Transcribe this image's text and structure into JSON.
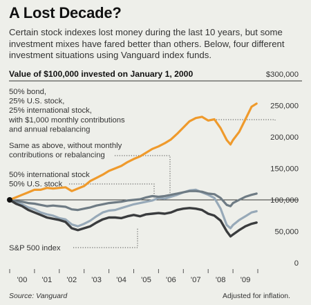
{
  "header": {
    "title": "A Lost Decade?",
    "intro": "Certain stock indexes lost money during the last 10 years, but some investment mixes have fared better than others. Below, four different investment situations using Vanguard index funds.",
    "subtitle": "Value of $100,000 invested on January 1, 2000"
  },
  "footer": {
    "source": "Source: Vanguard",
    "credit": "Adjusted for inflation."
  },
  "colors": {
    "background": "#eeefea",
    "contributions": "#ef9a2c",
    "no_contributions": "#6e7b84",
    "intl_us": "#97a9b8",
    "sp500": "#3a3c3e"
  },
  "chart_data": {
    "type": "line",
    "x_tick_labels": [
      "'00",
      "'01",
      "'02",
      "'03",
      "'04",
      "'05",
      "'06",
      "'07",
      "'08",
      "'09"
    ],
    "y_tick_labels": [
      "0",
      "50,000",
      "100,000",
      "150,000",
      "200,000",
      "250,000",
      "$300,000"
    ],
    "y_ticks": [
      0,
      50000,
      100000,
      150000,
      200000,
      250000,
      300000
    ],
    "ylim": [
      0,
      300000
    ],
    "xlim": [
      2000,
      2010
    ],
    "baseline": 100000,
    "grid": false,
    "series": [
      {
        "key": "contributions",
        "label": "50% bond,\n25% U.S. stock,\n25% international stock,\nwith $1,000 monthly contributions\nand annual rebalancing",
        "points": [
          [
            2000.0,
            100000
          ],
          [
            2000.25,
            104000
          ],
          [
            2000.5,
            108000
          ],
          [
            2000.75,
            112000
          ],
          [
            2001.0,
            116000
          ],
          [
            2001.25,
            116000
          ],
          [
            2001.5,
            119000
          ],
          [
            2001.75,
            118000
          ],
          [
            2002.0,
            119000
          ],
          [
            2002.25,
            120000
          ],
          [
            2002.5,
            114000
          ],
          [
            2002.75,
            118000
          ],
          [
            2003.0,
            122000
          ],
          [
            2003.25,
            130000
          ],
          [
            2003.5,
            135000
          ],
          [
            2003.75,
            140000
          ],
          [
            2004.0,
            146000
          ],
          [
            2004.25,
            150000
          ],
          [
            2004.5,
            154000
          ],
          [
            2004.75,
            160000
          ],
          [
            2005.0,
            165000
          ],
          [
            2005.25,
            169000
          ],
          [
            2005.5,
            175000
          ],
          [
            2005.75,
            181000
          ],
          [
            2006.0,
            185000
          ],
          [
            2006.25,
            190000
          ],
          [
            2006.5,
            196000
          ],
          [
            2006.75,
            205000
          ],
          [
            2007.0,
            215000
          ],
          [
            2007.25,
            225000
          ],
          [
            2007.5,
            230000
          ],
          [
            2007.75,
            232000
          ],
          [
            2008.0,
            226000
          ],
          [
            2008.25,
            228000
          ],
          [
            2008.5,
            214000
          ],
          [
            2008.75,
            195000
          ],
          [
            2008.9,
            188000
          ],
          [
            2009.0,
            195000
          ],
          [
            2009.25,
            208000
          ],
          [
            2009.5,
            228000
          ],
          [
            2009.75,
            248000
          ],
          [
            2009.95,
            253000
          ]
        ]
      },
      {
        "key": "no_contributions",
        "label": "Same as above, without monthly\ncontributions or rebalancing",
        "points": [
          [
            2000.0,
            100000
          ],
          [
            2000.25,
            98000
          ],
          [
            2000.5,
            97000
          ],
          [
            2000.75,
            95000
          ],
          [
            2001.0,
            94000
          ],
          [
            2001.25,
            92000
          ],
          [
            2001.5,
            90000
          ],
          [
            2001.75,
            91000
          ],
          [
            2002.0,
            90000
          ],
          [
            2002.25,
            89000
          ],
          [
            2002.5,
            85000
          ],
          [
            2002.75,
            84000
          ],
          [
            2003.0,
            86000
          ],
          [
            2003.25,
            88000
          ],
          [
            2003.5,
            91000
          ],
          [
            2003.75,
            93000
          ],
          [
            2004.0,
            95000
          ],
          [
            2004.25,
            96000
          ],
          [
            2004.5,
            97000
          ],
          [
            2004.75,
            99000
          ],
          [
            2005.0,
            100000
          ],
          [
            2005.25,
            101000
          ],
          [
            2005.5,
            104000
          ],
          [
            2005.75,
            106000
          ],
          [
            2006.0,
            105000
          ],
          [
            2006.25,
            106000
          ],
          [
            2006.5,
            108000
          ],
          [
            2006.75,
            110000
          ],
          [
            2007.0,
            112000
          ],
          [
            2007.25,
            114000
          ],
          [
            2007.5,
            114000
          ],
          [
            2007.75,
            113000
          ],
          [
            2008.0,
            110000
          ],
          [
            2008.25,
            109000
          ],
          [
            2008.5,
            103000
          ],
          [
            2008.75,
            92000
          ],
          [
            2008.9,
            90000
          ],
          [
            2009.0,
            95000
          ],
          [
            2009.25,
            100000
          ],
          [
            2009.5,
            105000
          ],
          [
            2009.75,
            108000
          ],
          [
            2009.95,
            110000
          ]
        ]
      },
      {
        "key": "intl_us",
        "label": "50% international stock\n50% U.S. stock",
        "points": [
          [
            2000.0,
            100000
          ],
          [
            2000.25,
            96000
          ],
          [
            2000.5,
            93000
          ],
          [
            2000.75,
            88000
          ],
          [
            2001.0,
            85000
          ],
          [
            2001.25,
            80000
          ],
          [
            2001.5,
            77000
          ],
          [
            2001.75,
            75000
          ],
          [
            2002.0,
            71000
          ],
          [
            2002.25,
            69000
          ],
          [
            2002.5,
            61000
          ],
          [
            2002.75,
            58000
          ],
          [
            2003.0,
            62000
          ],
          [
            2003.25,
            67000
          ],
          [
            2003.5,
            74000
          ],
          [
            2003.75,
            80000
          ],
          [
            2004.0,
            83000
          ],
          [
            2004.25,
            84000
          ],
          [
            2004.5,
            87000
          ],
          [
            2004.75,
            90000
          ],
          [
            2005.0,
            93000
          ],
          [
            2005.25,
            95000
          ],
          [
            2005.5,
            97000
          ],
          [
            2005.75,
            99000
          ],
          [
            2006.0,
            103000
          ],
          [
            2006.25,
            102000
          ],
          [
            2006.5,
            105000
          ],
          [
            2006.75,
            108000
          ],
          [
            2007.0,
            112000
          ],
          [
            2007.25,
            115000
          ],
          [
            2007.5,
            116000
          ],
          [
            2007.75,
            112000
          ],
          [
            2008.0,
            108000
          ],
          [
            2008.25,
            103000
          ],
          [
            2008.5,
            86000
          ],
          [
            2008.75,
            60000
          ],
          [
            2008.9,
            55000
          ],
          [
            2009.0,
            60000
          ],
          [
            2009.25,
            68000
          ],
          [
            2009.5,
            74000
          ],
          [
            2009.75,
            80000
          ],
          [
            2009.95,
            82000
          ]
        ]
      },
      {
        "key": "sp500",
        "label": "S&P 500 index",
        "points": [
          [
            2000.0,
            100000
          ],
          [
            2000.25,
            94000
          ],
          [
            2000.5,
            90000
          ],
          [
            2000.75,
            84000
          ],
          [
            2001.0,
            80000
          ],
          [
            2001.25,
            76000
          ],
          [
            2001.5,
            72000
          ],
          [
            2001.75,
            70000
          ],
          [
            2002.0,
            68000
          ],
          [
            2002.25,
            65000
          ],
          [
            2002.5,
            55000
          ],
          [
            2002.75,
            52000
          ],
          [
            2003.0,
            55000
          ],
          [
            2003.25,
            58000
          ],
          [
            2003.5,
            64000
          ],
          [
            2003.75,
            69000
          ],
          [
            2004.0,
            72000
          ],
          [
            2004.25,
            72000
          ],
          [
            2004.5,
            71000
          ],
          [
            2004.75,
            74000
          ],
          [
            2005.0,
            76000
          ],
          [
            2005.25,
            74000
          ],
          [
            2005.5,
            77000
          ],
          [
            2005.75,
            78000
          ],
          [
            2006.0,
            79000
          ],
          [
            2006.25,
            78000
          ],
          [
            2006.5,
            80000
          ],
          [
            2006.75,
            84000
          ],
          [
            2007.0,
            86000
          ],
          [
            2007.25,
            87000
          ],
          [
            2007.5,
            86000
          ],
          [
            2007.75,
            84000
          ],
          [
            2008.0,
            78000
          ],
          [
            2008.25,
            75000
          ],
          [
            2008.5,
            67000
          ],
          [
            2008.75,
            50000
          ],
          [
            2008.9,
            42000
          ],
          [
            2009.0,
            45000
          ],
          [
            2009.25,
            52000
          ],
          [
            2009.5,
            58000
          ],
          [
            2009.75,
            62000
          ],
          [
            2009.95,
            64000
          ]
        ]
      }
    ]
  }
}
